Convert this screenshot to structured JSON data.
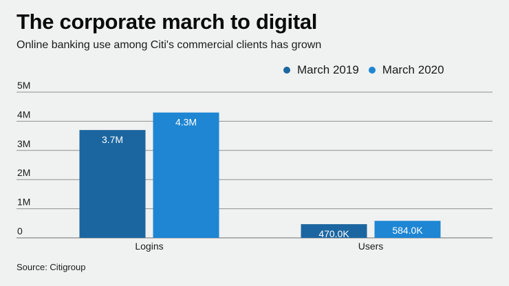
{
  "title": "The corporate march to digital",
  "subtitle": "Online banking use among Citi's commercial clients has grown",
  "source": "Source: Citigroup",
  "chart_data": {
    "type": "bar",
    "title": "The corporate march to digital",
    "subtitle": "Online banking use among Citi's commercial clients has grown",
    "xlabel": "",
    "ylabel": "",
    "categories": [
      "Logins",
      "Users"
    ],
    "series": [
      {
        "name": "March 2019",
        "color": "#1b66a0",
        "values": [
          3700000,
          470000
        ],
        "labels": [
          "3.7M",
          "470.0K"
        ]
      },
      {
        "name": "March 2020",
        "color": "#1e86d3",
        "values": [
          4300000,
          584000
        ],
        "labels": [
          "4.3M",
          "584.0K"
        ]
      }
    ],
    "ylim": [
      0,
      5000000
    ],
    "yticks": [
      0,
      1000000,
      2000000,
      3000000,
      4000000,
      5000000
    ],
    "ytick_labels": [
      "0",
      "1M",
      "2M",
      "3M",
      "4M",
      "5M"
    ],
    "grid": true,
    "legend_position": "top-right",
    "source": "Source: Citigroup"
  }
}
